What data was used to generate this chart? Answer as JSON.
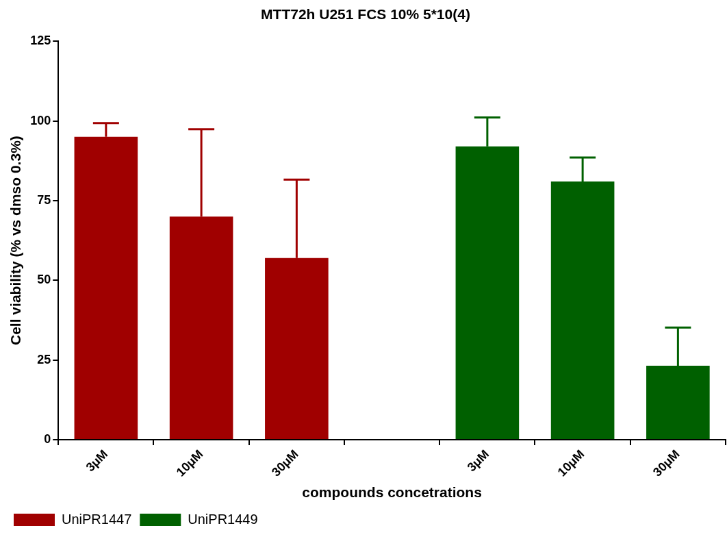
{
  "chart_data": {
    "type": "bar",
    "title": "MTT72h U251 FCS 10% 5*10(4)",
    "xlabel": "compounds concetrations",
    "ylabel": "Cell viability (% vs dmso 0.3%)",
    "categories": [
      "3μM",
      "10μM",
      "30μM",
      null,
      "3μM",
      "10μM",
      "30μM"
    ],
    "series": [
      {
        "name": "UniPR1447",
        "color": "#a00000",
        "values": [
          95,
          70,
          57,
          null,
          null,
          null,
          null
        ],
        "errors": [
          [
            95,
            99.3
          ],
          [
            70,
            97.4
          ],
          [
            57,
            81.6
          ],
          null,
          null,
          null,
          null
        ]
      },
      {
        "name": "UniPR1449",
        "color": "#006000",
        "values": [
          null,
          null,
          null,
          null,
          92,
          81,
          23.2
        ],
        "errors": [
          null,
          null,
          null,
          null,
          [
            92,
            101.1
          ],
          [
            81,
            88.5
          ],
          [
            23.2,
            35.2
          ]
        ]
      }
    ],
    "ylim": [
      0,
      125
    ],
    "yticks": [
      0,
      25,
      50,
      75,
      100,
      125
    ],
    "grid": false,
    "legend": "bottom left"
  }
}
